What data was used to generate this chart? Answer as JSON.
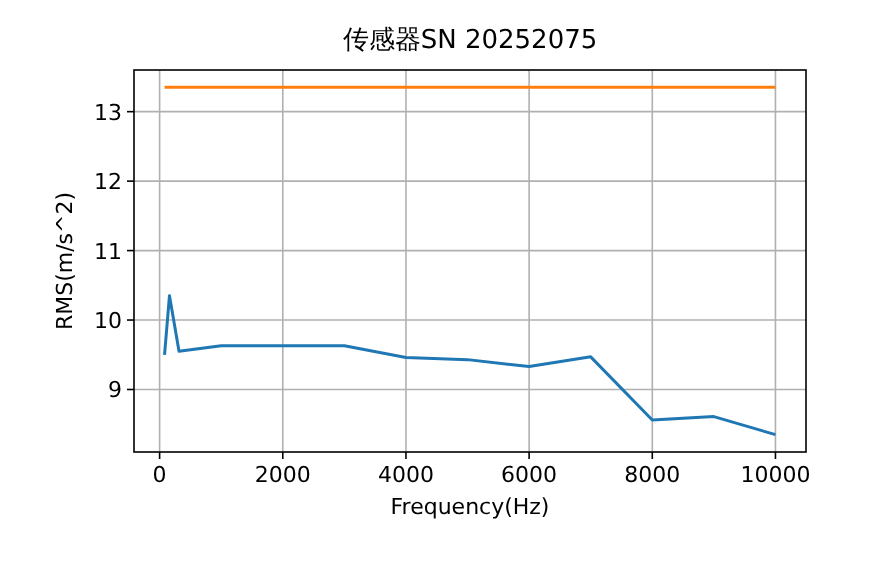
{
  "chart_data": {
    "type": "line",
    "title": "传感器SN 20252075",
    "xlabel": "Frequency(Hz)",
    "ylabel": "RMS(m/s^2)",
    "xlim": [
      -416,
      10496
    ],
    "xticks": [
      0,
      2000,
      4000,
      6000,
      8000,
      10000
    ],
    "ylim": [
      8.1,
      13.6
    ],
    "yticks": [
      9,
      10,
      11,
      12,
      13
    ],
    "grid": true,
    "series": [
      {
        "color": "#1f77b4",
        "x": [
          80,
          160,
          315,
          1000,
          2000,
          3000,
          4000,
          5000,
          6000,
          7000,
          8000,
          9000,
          10000
        ],
        "values": [
          9.5,
          10.35,
          9.55,
          9.63,
          9.63,
          9.63,
          9.46,
          9.43,
          9.33,
          9.47,
          8.56,
          8.61,
          8.35
        ]
      },
      {
        "color": "#ff7f0e",
        "x": [
          80,
          10000
        ],
        "values": [
          13.35,
          13.35
        ]
      }
    ]
  }
}
